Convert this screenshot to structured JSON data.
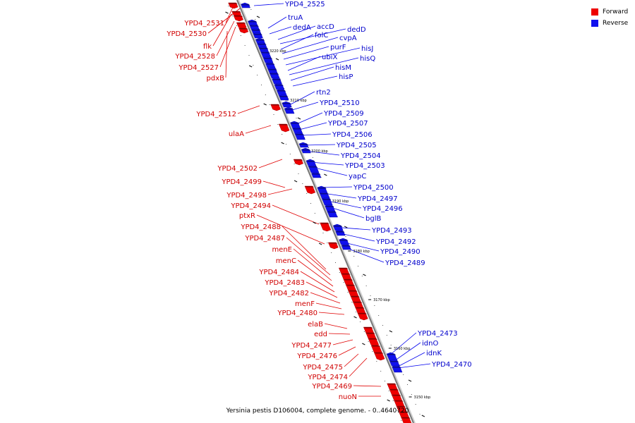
{
  "legend": {
    "forward_label": "Forward",
    "reverse_label": "Reverse",
    "forward_color": "#ee0000",
    "reverse_color": "#1010ee"
  },
  "caption": "Yersinia pestis D106004, complete genome. - 0..4640720",
  "ticks": [
    "3220 kbp",
    "3210 kbp",
    "3200 kbp",
    "3190 kbp",
    "3180 kbp",
    "3170 kbp",
    "3160 kbp",
    "3150 kbp"
  ],
  "forward_genes": [
    "YPD4_2531",
    "YPD4_2530",
    "flk",
    "YPD4_2528",
    "YPD4_2527",
    "pdxB",
    "YPD4_2512",
    "ulaA",
    "YPD4_2502",
    "YPD4_2499",
    "YPD4_2498",
    "YPD4_2494",
    "ptxR",
    "YPD4_2488",
    "YPD4_2487",
    "menE",
    "menC",
    "YPD4_2484",
    "YPD4_2483",
    "YPD4_2482",
    "menF",
    "YPD4_2480",
    "elaB",
    "edd",
    "YPD4_2477",
    "YPD4_2476",
    "YPD4_2475",
    "YPD4_2474",
    "YPD4_2469",
    "nuoN"
  ],
  "reverse_genes": [
    "YPD4_2525",
    "truA",
    "dedA",
    "accD",
    "dedD",
    "folC",
    "cvpA",
    "purF",
    "hisJ",
    "ubiX",
    "hisQ",
    "hisM",
    "hisP",
    "rtn2",
    "YPD4_2510",
    "YPD4_2509",
    "YPD4_2507",
    "YPD4_2506",
    "YPD4_2505",
    "YPD4_2504",
    "YPD4_2503",
    "yapC",
    "YPD4_2500",
    "YPD4_2497",
    "YPD4_2496",
    "bglB",
    "YPD4_2493",
    "YPD4_2492",
    "YPD4_2490",
    "YPD4_2489",
    "YPD4_2473",
    "idnO",
    "idnK",
    "YPD4_2470"
  ]
}
